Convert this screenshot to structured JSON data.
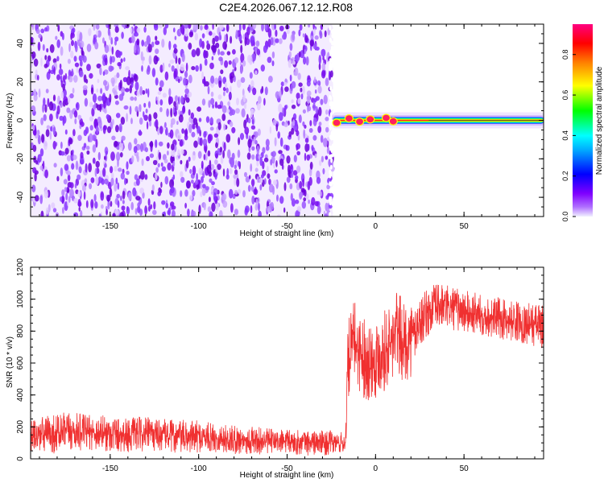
{
  "title": "C2E4.2026.067.12.12.R08",
  "chart_data": [
    {
      "type": "heatmap",
      "title": "C2E4.2026.067.12.12.R08",
      "xlabel": "Height of straight line (km)",
      "ylabel": "Frequency (Hz)",
      "xlim": [
        -195,
        95
      ],
      "ylim": [
        -50,
        50
      ],
      "xticks": [
        -150,
        -100,
        -50,
        0,
        50
      ],
      "yticks": [
        -40,
        -20,
        0,
        20,
        40
      ],
      "noise_region_x": [
        -195,
        -24
      ],
      "signal_region_x": [
        -24,
        95
      ],
      "signal_frequency_hz": 0,
      "colorbar": {
        "label": "Normalized spectral amplitude",
        "range": [
          0,
          0.95
        ],
        "ticks": [
          0.0,
          0.2,
          0.4,
          0.6,
          0.8
        ],
        "colors": [
          "#e0e0ff",
          "#7f00ff",
          "#0000ff",
          "#00ffff",
          "#00ff00",
          "#ffff00",
          "#ff8000",
          "#ff0000",
          "#ff0080"
        ]
      }
    },
    {
      "type": "line",
      "xlabel": "Height of straight line (km)",
      "ylabel": "SNR (10 * v/v)",
      "xlim": [
        -195,
        95
      ],
      "ylim": [
        0,
        1200
      ],
      "xticks": [
        -150,
        -100,
        -50,
        0,
        50
      ],
      "yticks": [
        0,
        200,
        400,
        600,
        800,
        1000,
        1200
      ],
      "color": "#f03030",
      "series": [
        {
          "name": "SNR",
          "x": [
            -195,
            -180,
            -170,
            -160,
            -150,
            -140,
            -130,
            -120,
            -110,
            -100,
            -90,
            -80,
            -70,
            -60,
            -50,
            -40,
            -30,
            -20,
            -17,
            -16,
            -15,
            -12,
            -8,
            -4,
            0,
            4,
            8,
            12,
            16,
            20,
            25,
            30,
            35,
            40,
            45,
            50,
            55,
            60,
            65,
            70,
            75,
            80,
            85,
            90,
            95
          ],
          "mean": [
            140,
            160,
            170,
            165,
            160,
            150,
            155,
            150,
            135,
            140,
            130,
            120,
            115,
            110,
            105,
            100,
            100,
            100,
            100,
            500,
            640,
            750,
            650,
            620,
            630,
            680,
            700,
            800,
            720,
            750,
            860,
            920,
            960,
            950,
            940,
            920,
            910,
            900,
            890,
            880,
            870,
            860,
            850,
            840,
            830
          ],
          "spread": [
            110,
            130,
            120,
            110,
            120,
            110,
            110,
            100,
            110,
            100,
            90,
            90,
            90,
            80,
            80,
            80,
            80,
            70,
            70,
            250,
            250,
            250,
            260,
            260,
            250,
            260,
            260,
            280,
            250,
            240,
            160,
            150,
            150,
            140,
            140,
            140,
            140,
            130,
            130,
            130,
            130,
            130,
            130,
            140,
            140
          ]
        }
      ]
    }
  ]
}
